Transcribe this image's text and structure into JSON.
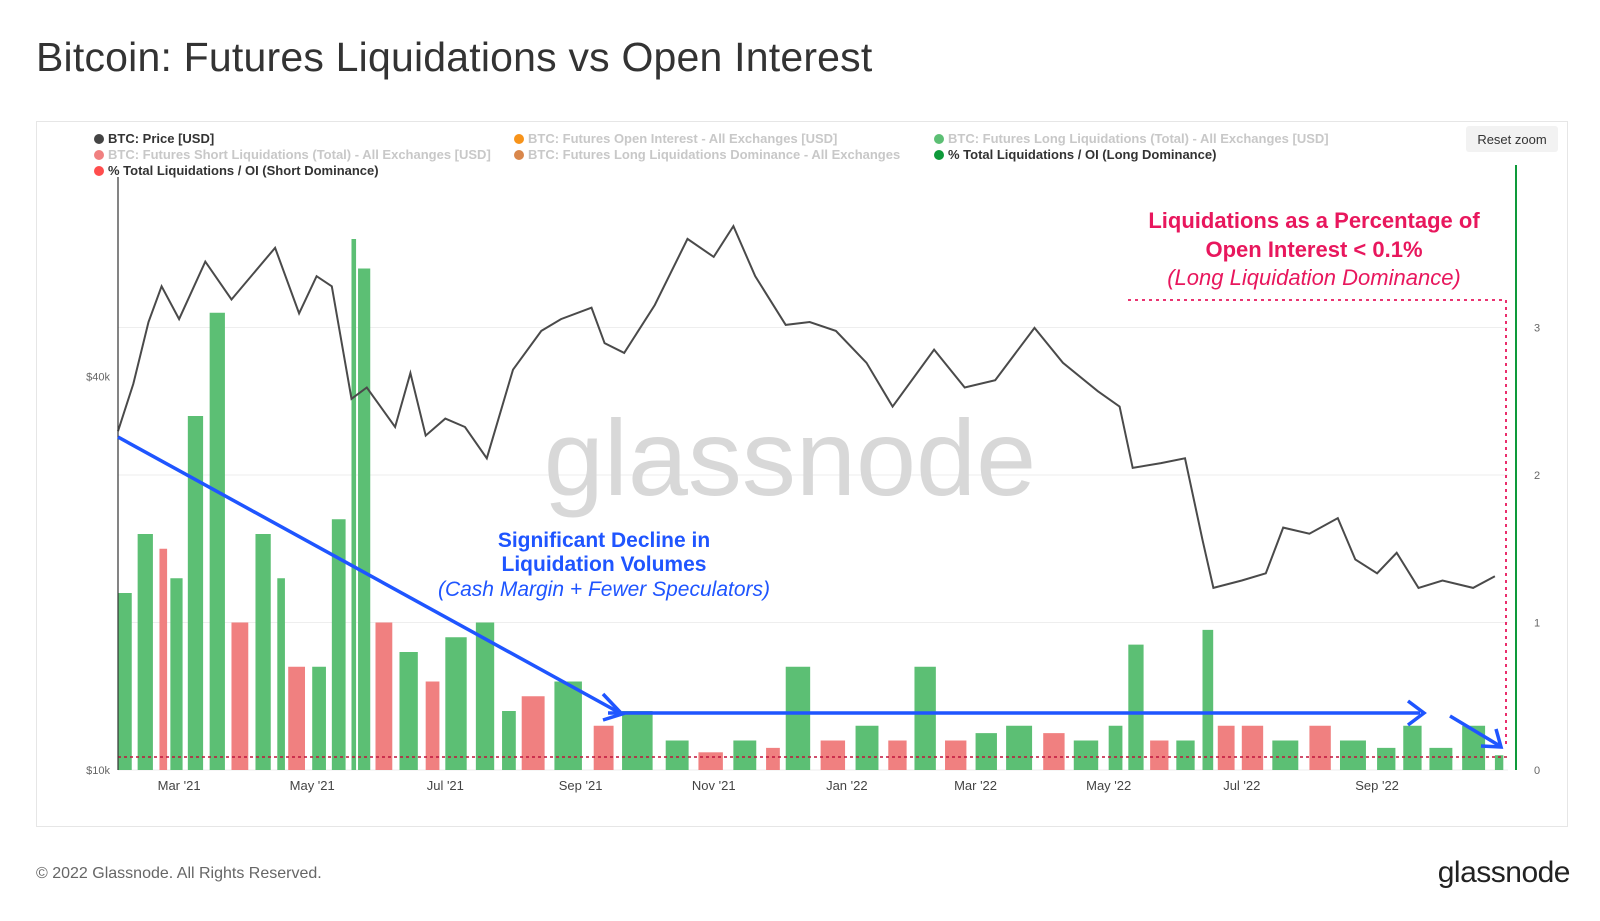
{
  "page": {
    "title": "Bitcoin: Futures Liquidations vs Open Interest",
    "copyright": "© 2022 Glassnode. All Rights Reserved.",
    "brand": "glassnode"
  },
  "toolbar": {
    "reset_zoom_label": "Reset zoom"
  },
  "legend": [
    {
      "label": "BTC: Price [USD]",
      "color": "#444444",
      "active": true
    },
    {
      "label": "BTC: Futures Open Interest - All Exchanges [USD]",
      "color": "#f7931a",
      "active": false
    },
    {
      "label": "BTC: Futures Long Liquidations (Total) - All Exchanges [USD]",
      "color": "#5cbf74",
      "active": false
    },
    {
      "label": "BTC: Futures Short Liquidations (Total) - All Exchanges [USD]",
      "color": "#f08080",
      "active": false
    },
    {
      "label": "BTC: Futures Long Liquidations Dominance - All Exchanges",
      "color": "#d9874b",
      "active": false
    },
    {
      "label": "% Total Liquidations / OI (Long Dominance)",
      "color": "#0e9a3a",
      "active": true
    },
    {
      "label": "% Total Liquidations / OI (Short Dominance)",
      "color": "#ff4d4d",
      "active": true
    }
  ],
  "annotations": {
    "decline_title_1": "Significant Decline in",
    "decline_title_2": "Liquidation Volumes",
    "decline_sub": "(Cash Margin + Fewer Speculators)",
    "threshold_title_1": "Liquidations as a Percentage of",
    "threshold_title_2": "Open Interest < 0.1%",
    "threshold_sub": "(Long Liquidation Dominance)",
    "watermark": "glassnode"
  },
  "colors": {
    "price_line": "#4a4a4a",
    "long_bar": "#5cbf74",
    "short_bar": "#f08080",
    "annotation_blue": "#1f55ff",
    "annotation_pink": "#e8175d",
    "right_axis": "#0e9a3a"
  },
  "chart_data": {
    "type": "line+bar",
    "x_range": [
      "2021-02-01",
      "2022-10-31"
    ],
    "x_ticks": [
      "Mar '21",
      "May '21",
      "Jul '21",
      "Sep '21",
      "Nov '21",
      "Jan '22",
      "Mar '22",
      "May '22",
      "Jul '22",
      "Sep '22"
    ],
    "left_axis": {
      "scale": "log",
      "ticks": [
        "$10k",
        "$40k"
      ],
      "tick_values": [
        10000,
        40000
      ]
    },
    "right_axis": {
      "range": [
        0,
        4
      ],
      "ticks": [
        "0",
        "1",
        "2",
        "3"
      ]
    },
    "threshold": 0.1,
    "price_series": {
      "name": "BTC: Price [USD]",
      "x": [
        "2021-02-01",
        "2021-02-08",
        "2021-02-15",
        "2021-02-21",
        "2021-03-01",
        "2021-03-13",
        "2021-03-25",
        "2021-04-14",
        "2021-04-25",
        "2021-05-03",
        "2021-05-10",
        "2021-05-19",
        "2021-05-26",
        "2021-06-08",
        "2021-06-15",
        "2021-06-22",
        "2021-07-01",
        "2021-07-10",
        "2021-07-20",
        "2021-08-01",
        "2021-08-14",
        "2021-08-23",
        "2021-09-06",
        "2021-09-12",
        "2021-09-21",
        "2021-10-05",
        "2021-10-20",
        "2021-11-01",
        "2021-11-10",
        "2021-11-20",
        "2021-12-04",
        "2021-12-15",
        "2021-12-27",
        "2022-01-10",
        "2022-01-22",
        "2022-02-10",
        "2022-02-24",
        "2022-03-10",
        "2022-03-28",
        "2022-04-10",
        "2022-04-26",
        "2022-05-06",
        "2022-05-12",
        "2022-05-25",
        "2022-06-05",
        "2022-06-13",
        "2022-06-18",
        "2022-07-01",
        "2022-07-12",
        "2022-07-20",
        "2022-08-01",
        "2022-08-14",
        "2022-08-22",
        "2022-09-01",
        "2022-09-10",
        "2022-09-20",
        "2022-10-01",
        "2022-10-15",
        "2022-10-25"
      ],
      "values": [
        33000,
        39000,
        48500,
        55000,
        49000,
        60000,
        52500,
        63000,
        50000,
        57000,
        55000,
        37000,
        38500,
        33500,
        40500,
        32500,
        34500,
        33500,
        30000,
        41000,
        47000,
        49000,
        51000,
        45000,
        43500,
        51500,
        65000,
        61000,
        68000,
        57000,
        48000,
        48500,
        47000,
        42000,
        36000,
        44000,
        38500,
        39500,
        47500,
        42000,
        38000,
        36000,
        29000,
        29500,
        30000,
        22500,
        19000,
        19500,
        20000,
        23500,
        23000,
        24300,
        21000,
        20000,
        21500,
        19000,
        19500,
        19000,
        19800
      ]
    },
    "liquidation_bars": {
      "name": "% Total Liquidations / OI",
      "x": [
        "2021-02-01",
        "2021-02-10",
        "2021-02-20",
        "2021-02-25",
        "2021-03-05",
        "2021-03-15",
        "2021-03-25",
        "2021-04-05",
        "2021-04-15",
        "2021-04-20",
        "2021-05-01",
        "2021-05-10",
        "2021-05-19",
        "2021-05-22",
        "2021-05-30",
        "2021-06-10",
        "2021-06-22",
        "2021-07-01",
        "2021-07-15",
        "2021-07-27",
        "2021-08-05",
        "2021-08-20",
        "2021-09-07",
        "2021-09-20",
        "2021-10-10",
        "2021-10-25",
        "2021-11-10",
        "2021-11-25",
        "2021-12-04",
        "2021-12-20",
        "2022-01-05",
        "2022-01-20",
        "2022-02-01",
        "2022-02-15",
        "2022-03-01",
        "2022-03-15",
        "2022-04-01",
        "2022-04-15",
        "2022-05-01",
        "2022-05-10",
        "2022-05-20",
        "2022-06-01",
        "2022-06-13",
        "2022-06-20",
        "2022-07-01",
        "2022-07-15",
        "2022-08-01",
        "2022-08-15",
        "2022-09-01",
        "2022-09-13",
        "2022-09-25",
        "2022-10-10",
        "2022-10-25"
      ],
      "values": [
        1.2,
        1.6,
        1.5,
        1.3,
        2.4,
        3.1,
        1.0,
        1.6,
        1.3,
        0.7,
        0.7,
        1.7,
        3.6,
        3.4,
        1.0,
        0.8,
        0.6,
        0.9,
        1.0,
        0.4,
        0.5,
        0.6,
        0.3,
        0.4,
        0.2,
        0.12,
        0.2,
        0.15,
        0.7,
        0.2,
        0.3,
        0.2,
        0.7,
        0.2,
        0.25,
        0.3,
        0.25,
        0.2,
        0.3,
        0.85,
        0.2,
        0.2,
        0.95,
        0.3,
        0.3,
        0.2,
        0.3,
        0.2,
        0.15,
        0.3,
        0.15,
        0.3,
        0.1
      ],
      "dominance": [
        "long",
        "long",
        "short",
        "long",
        "long",
        "long",
        "short",
        "long",
        "long",
        "short",
        "long",
        "long",
        "long",
        "long",
        "short",
        "long",
        "short",
        "long",
        "long",
        "long",
        "short",
        "long",
        "short",
        "long",
        "long",
        "short",
        "long",
        "short",
        "long",
        "short",
        "long",
        "short",
        "long",
        "short",
        "long",
        "long",
        "short",
        "long",
        "long",
        "long",
        "short",
        "long",
        "long",
        "short",
        "short",
        "long",
        "short",
        "long",
        "long",
        "long",
        "long",
        "long",
        "long"
      ]
    }
  }
}
